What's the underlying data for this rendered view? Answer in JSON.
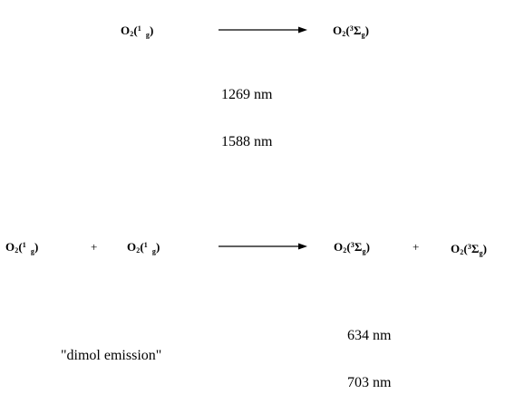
{
  "reaction1": {
    "reactant": {
      "symbol": "O",
      "subscript": "2",
      "paren_open": "(",
      "multiplicity": "1",
      "term_symbol": "∆",
      "term_sub": "g",
      "paren_close": ")"
    },
    "product": {
      "symbol": "O",
      "subscript": "2",
      "paren_open": "(",
      "multiplicity": "3",
      "term_symbol": "Σ",
      "term_sub": "g",
      "paren_close": ")"
    },
    "wavelengths": [
      "1269 nm",
      "1588 nm"
    ]
  },
  "reaction2": {
    "reactant_a": {
      "symbol": "O",
      "subscript": "2",
      "paren_open": "(",
      "multiplicity": "1",
      "term_symbol": "∆",
      "term_sub": "g",
      "paren_close": ")"
    },
    "plus_left": "+",
    "reactant_b": {
      "symbol": "O",
      "subscript": "2",
      "paren_open": "(",
      "multiplicity": "1",
      "term_symbol": "∆",
      "term_sub": "g",
      "paren_close": ")"
    },
    "product_a": {
      "symbol": "O",
      "subscript": "2",
      "paren_open": "(",
      "multiplicity": "3",
      "term_symbol": "Σ",
      "term_sub": "g",
      "paren_close": ")"
    },
    "plus_right": "+",
    "product_b": {
      "symbol": "O",
      "subscript": "2",
      "paren_open": "(",
      "multiplicity": "3",
      "term_symbol": "Σ",
      "term_sub": "g",
      "paren_close": ")"
    },
    "label": "\"dimol emission\"",
    "wavelengths": [
      "634 nm",
      "703 nm"
    ]
  }
}
